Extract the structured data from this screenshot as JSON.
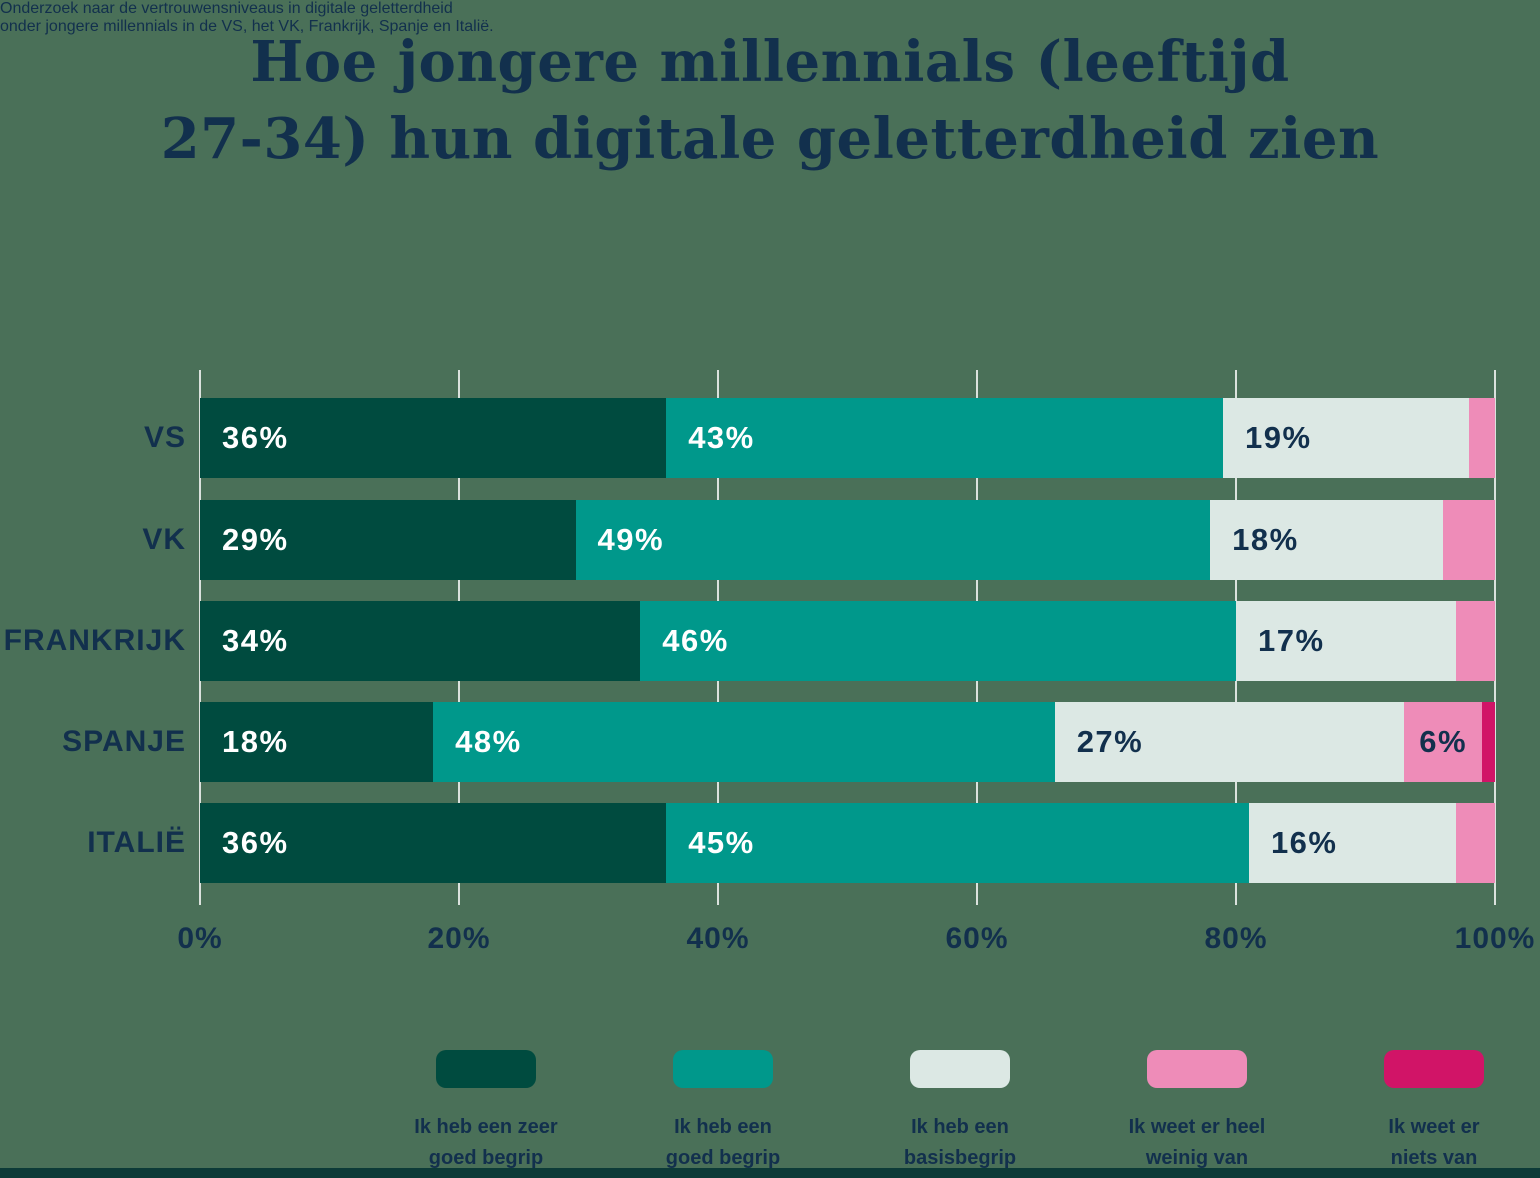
{
  "page": {
    "background_color": "#4a7058",
    "footer_strip_color": "#0d3b38",
    "text_color": "#12304d"
  },
  "header": {
    "title_lines": [
      "Hoe jongere millennials (leeftijd",
      "27-34) hun digitale geletterdheid zien"
    ],
    "subtitle_lines": [
      "Onderzoek naar de vertrouwensniveaus in digitale geletterdheid",
      "onder jongere millennials in de VS, het VK, Frankrijk, Spanje en Italië."
    ]
  },
  "chart_data": {
    "type": "bar",
    "orientation": "horizontal",
    "stacked": true,
    "categories": [
      "VS",
      "VK",
      "FRANKRIJK",
      "SPANJE",
      "ITALIË"
    ],
    "series": [
      {
        "name": "Ik heb een zeer goed begrip",
        "color": "#004b3f",
        "label_color": "#ffffff",
        "values": [
          36,
          29,
          34,
          18,
          36
        ]
      },
      {
        "name": "Ik heb een goed begrip",
        "color": "#00988b",
        "label_color": "#ffffff",
        "values": [
          43,
          49,
          46,
          48,
          45
        ]
      },
      {
        "name": "Ik heb een basisbegrip",
        "color": "#dce8e4",
        "label_color": "#12304d",
        "values": [
          19,
          18,
          17,
          27,
          16
        ]
      },
      {
        "name": "Ik weet er heel weinig van",
        "color": "#ee8cb8",
        "label_color": "#12304d",
        "values": [
          2,
          4,
          3,
          6,
          3
        ]
      },
      {
        "name": "Ik weet er niets van",
        "color": "#d11467",
        "label_color": "#12304d",
        "values": [
          0,
          0,
          0,
          1,
          0
        ]
      }
    ],
    "value_suffix": "%",
    "min_label_value": 6,
    "x_ticks": [
      "0%",
      "20%",
      "40%",
      "60%",
      "80%",
      "100%"
    ],
    "xlim": [
      0,
      100
    ],
    "grid": true,
    "gridline_color": "rgba(255,255,255,0.8)",
    "legend_position": "bottom"
  },
  "legend": {
    "items": [
      {
        "swatch_color": "#004b3f",
        "lines": [
          "Ik heb een zeer",
          "goed begrip"
        ]
      },
      {
        "swatch_color": "#00988b",
        "lines": [
          "Ik heb een",
          "goed begrip"
        ]
      },
      {
        "swatch_color": "#dce8e4",
        "lines": [
          "Ik heb een",
          "basisbegrip"
        ]
      },
      {
        "swatch_color": "#ee8cb8",
        "lines": [
          "Ik weet er heel",
          "weinig van"
        ]
      },
      {
        "swatch_color": "#d11467",
        "lines": [
          "Ik weet er",
          "niets van"
        ]
      }
    ]
  }
}
